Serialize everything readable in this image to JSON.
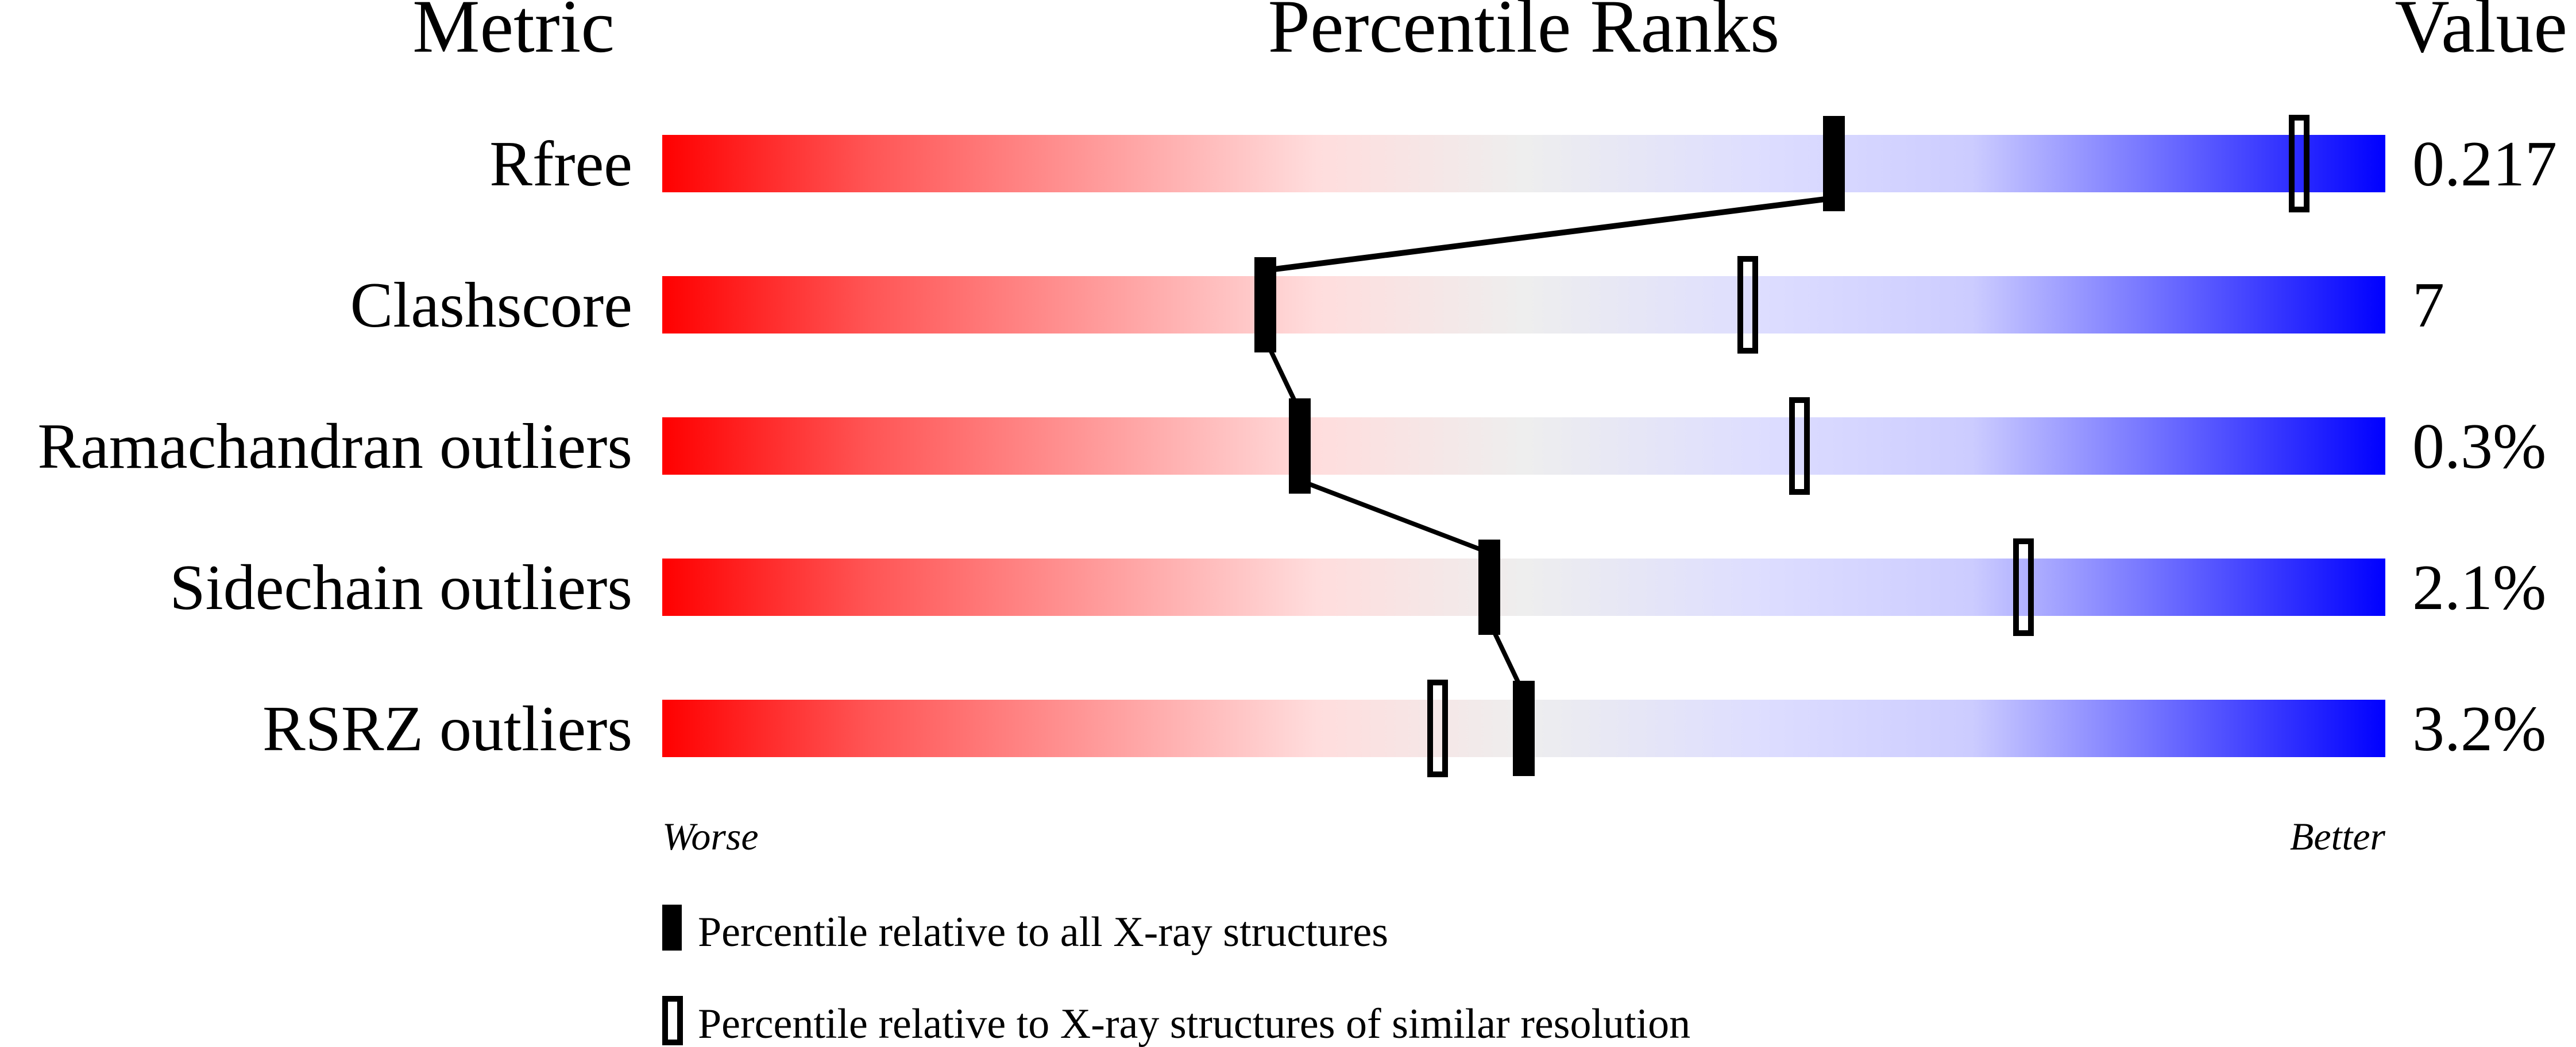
{
  "chart_data": {
    "type": "percentile-slider",
    "headers": {
      "metric": "Metric",
      "ranks": "Percentile Ranks",
      "value": "Value"
    },
    "xlim": [
      0,
      100
    ],
    "axis_labels": {
      "left": "Worse",
      "right": "Better"
    },
    "metrics": [
      {
        "name": "Rfree",
        "value": "0.217",
        "percentile_all": 68,
        "percentile_similar": 95
      },
      {
        "name": "Clashscore",
        "value": "7",
        "percentile_all": 35,
        "percentile_similar": 63
      },
      {
        "name": "Ramachandran outliers",
        "value": "0.3%",
        "percentile_all": 37,
        "percentile_similar": 66
      },
      {
        "name": "Sidechain outliers",
        "value": "2.1%",
        "percentile_all": 48,
        "percentile_similar": 79
      },
      {
        "name": "RSRZ outliers",
        "value": "3.2%",
        "percentile_all": 50,
        "percentile_similar": 45
      }
    ],
    "legend": [
      {
        "marker": "filled",
        "label": "Percentile relative to all X-ray structures"
      },
      {
        "marker": "open",
        "label": "Percentile relative to X-ray structures of similar resolution"
      }
    ],
    "colors": {
      "worse": "#ff0000",
      "mid": "#eeeeee",
      "better": "#0000ff",
      "marker": "#000000"
    }
  }
}
